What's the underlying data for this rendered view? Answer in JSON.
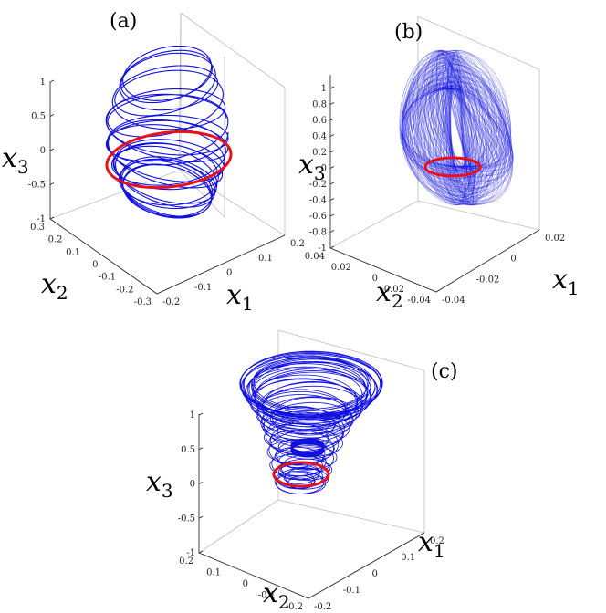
{
  "chart_data": [
    {
      "type": "line",
      "panel_label": "(a)",
      "series": [
        {
          "color": "#1010e0",
          "kind": "chaotic-trajectory"
        },
        {
          "color": "#e8101a",
          "kind": "periodic-orbit"
        }
      ],
      "axes": {
        "x1": {
          "name": "x",
          "sub": "1",
          "ticks": [
            "-0.2",
            "-0.1",
            "0",
            "0.1",
            "0.2"
          ],
          "range": [
            -0.2,
            0.2
          ]
        },
        "x2": {
          "name": "x",
          "sub": "2",
          "ticks": [
            "-0.3",
            "-0.2",
            "-0.1",
            "0",
            "0.1",
            "0.2",
            "0.3"
          ],
          "range": [
            -0.3,
            0.3
          ]
        },
        "x3": {
          "name": "x",
          "sub": "3",
          "ticks": [
            "-1",
            "-0.5",
            "0",
            "0.5",
            "1"
          ],
          "range": [
            -1,
            1
          ]
        }
      }
    },
    {
      "type": "line",
      "panel_label": "(b)",
      "series": [
        {
          "color": "#1010e0",
          "kind": "chaotic-trajectory"
        },
        {
          "color": "#e8101a",
          "kind": "periodic-orbit"
        }
      ],
      "axes": {
        "x1": {
          "name": "x",
          "sub": "1",
          "ticks": [
            "-0.04",
            "-0.02",
            "0",
            "0.02"
          ],
          "range": [
            -0.04,
            0.02
          ]
        },
        "x2": {
          "name": "x",
          "sub": "2",
          "ticks": [
            "-0.04",
            "-0.02",
            "0",
            "0.02",
            "0.04"
          ],
          "range": [
            -0.04,
            0.04
          ]
        },
        "x3": {
          "name": "x",
          "sub": "3",
          "ticks": [
            "-1",
            "-0.8",
            "-0.6",
            "-0.4",
            "-0.2",
            "0",
            "0.2",
            "0.4",
            "0.6",
            "0.8",
            "1"
          ],
          "range": [
            -1,
            1
          ]
        }
      }
    },
    {
      "type": "line",
      "panel_label": "(c)",
      "series": [
        {
          "color": "#1010e0",
          "kind": "chaotic-trajectory"
        },
        {
          "color": "#e8101a",
          "kind": "periodic-orbit"
        }
      ],
      "axes": {
        "x1": {
          "name": "x",
          "sub": "1",
          "ticks": [
            "-0.2",
            "-0.1",
            "0",
            "0.1",
            "0.2"
          ],
          "range": [
            -0.2,
            0.2
          ]
        },
        "x2": {
          "name": "x",
          "sub": "2",
          "ticks": [
            "-0.2",
            "-0.1",
            "0",
            "0.1",
            "0.2"
          ],
          "range": [
            -0.2,
            0.2
          ]
        },
        "x3": {
          "name": "x",
          "sub": "3",
          "ticks": [
            "-1",
            "-0.5",
            "0",
            "0.5",
            "1"
          ],
          "range": [
            -1,
            1
          ]
        }
      }
    }
  ]
}
